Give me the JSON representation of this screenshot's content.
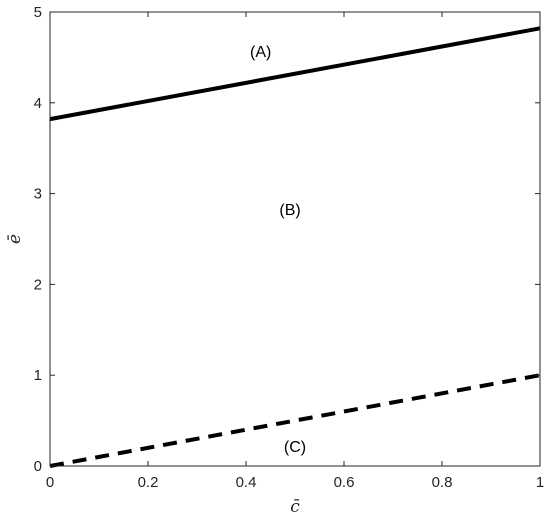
{
  "chart_data": {
    "type": "line",
    "xlabel": "c̄",
    "ylabel": "ē",
    "xlim": [
      0,
      1
    ],
    "ylim": [
      0,
      5
    ],
    "xticks": [
      0,
      0.2,
      0.4,
      0.6,
      0.8,
      1
    ],
    "xtick_labels": [
      "0",
      "0.2",
      "0.4",
      "0.6",
      "0.8",
      "1"
    ],
    "yticks": [
      0,
      1,
      2,
      3,
      4,
      5
    ],
    "ytick_labels": [
      "0",
      "1",
      "2",
      "3",
      "4",
      "5"
    ],
    "grid": false,
    "series": [
      {
        "style": "solid",
        "color": "#000000",
        "x": [
          0,
          1
        ],
        "y": [
          3.82,
          4.82
        ]
      },
      {
        "style": "dashed",
        "color": "#000000",
        "x": [
          0,
          1
        ],
        "y": [
          0,
          1
        ]
      }
    ],
    "annotations": [
      {
        "text": "(A)",
        "x": 0.43,
        "y": 4.57
      },
      {
        "text": "(B)",
        "x": 0.49,
        "y": 2.83
      },
      {
        "text": "(C)",
        "x": 0.5,
        "y": 0.22
      }
    ]
  }
}
